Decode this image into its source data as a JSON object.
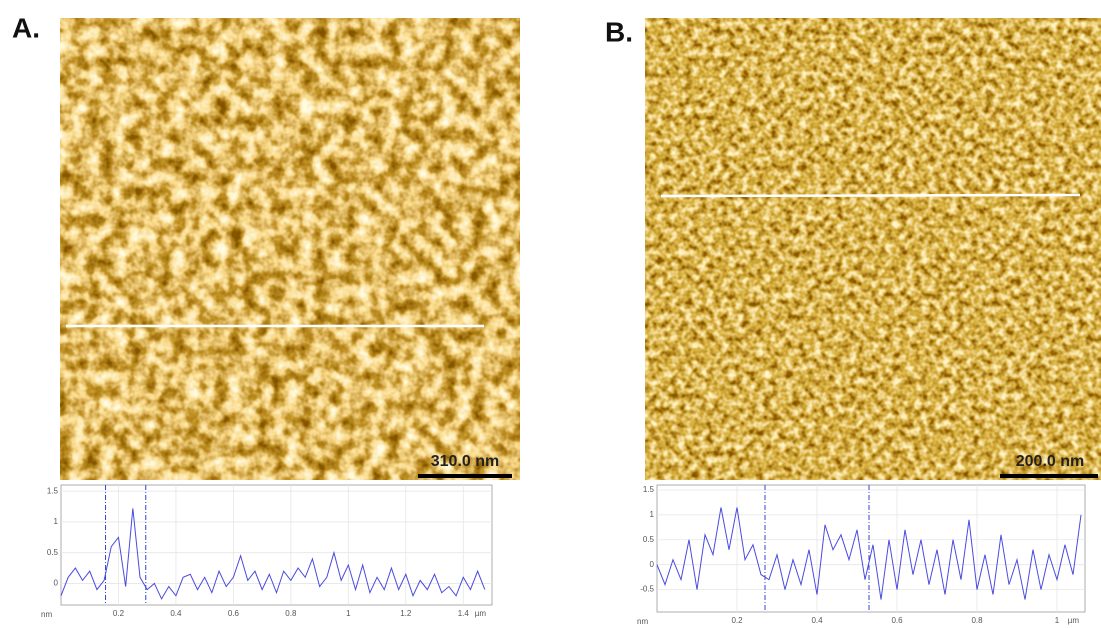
{
  "chart_data": [
    {
      "type": "line",
      "panel_label": "A.",
      "scale_bar": "310.0 nm",
      "x_unit": "µm",
      "y_unit": "nm",
      "x": [
        0,
        0.025,
        0.05,
        0.075,
        0.1,
        0.125,
        0.15,
        0.175,
        0.2,
        0.225,
        0.25,
        0.275,
        0.3,
        0.325,
        0.35,
        0.375,
        0.4,
        0.425,
        0.45,
        0.475,
        0.5,
        0.525,
        0.55,
        0.575,
        0.6,
        0.625,
        0.65,
        0.675,
        0.7,
        0.725,
        0.75,
        0.775,
        0.8,
        0.825,
        0.85,
        0.875,
        0.9,
        0.925,
        0.95,
        0.975,
        1.0,
        1.025,
        1.05,
        1.075,
        1.1,
        1.125,
        1.15,
        1.175,
        1.2,
        1.225,
        1.25,
        1.275,
        1.3,
        1.325,
        1.35,
        1.375,
        1.4,
        1.425,
        1.45,
        1.475
      ],
      "series": [
        {
          "color": "#4a4ae0",
          "values": [
            -0.2,
            0.1,
            0.25,
            0.05,
            0.2,
            -0.1,
            0.05,
            0.6,
            0.75,
            -0.05,
            1.22,
            0.1,
            -0.1,
            0,
            -0.25,
            -0.05,
            -0.2,
            0.1,
            0.15,
            -0.1,
            0.1,
            -0.15,
            0.2,
            -0.05,
            0.1,
            0.45,
            0.05,
            0.2,
            -0.1,
            0.15,
            -0.15,
            0.2,
            0.05,
            0.25,
            0.1,
            0.4,
            -0.05,
            0.1,
            0.5,
            0.05,
            0.3,
            -0.1,
            0.3,
            -0.15,
            0.1,
            -0.1,
            0.25,
            -0.1,
            0.15,
            -0.2,
            0.05,
            -0.1,
            0.15,
            -0.15,
            -0.05,
            -0.2,
            0.1,
            -0.1,
            0.2,
            -0.1
          ]
        }
      ],
      "cursors": [
        0.155,
        0.295
      ],
      "xlim": [
        0,
        1.5
      ],
      "ylim": [
        -0.35,
        1.6
      ],
      "xticks": [
        0.2,
        0.4,
        0.6,
        0.8,
        1,
        1.2,
        1.4
      ],
      "yticks": [
        1.5,
        1,
        0.5,
        0
      ],
      "grid": true
    },
    {
      "type": "line",
      "panel_label": "B.",
      "scale_bar": "200.0 nm",
      "x_unit": "µm",
      "y_unit": "nm",
      "x": [
        0,
        0.02,
        0.04,
        0.06,
        0.08,
        0.1,
        0.12,
        0.14,
        0.16,
        0.18,
        0.2,
        0.22,
        0.24,
        0.26,
        0.28,
        0.3,
        0.32,
        0.34,
        0.36,
        0.38,
        0.4,
        0.42,
        0.44,
        0.46,
        0.48,
        0.5,
        0.52,
        0.54,
        0.56,
        0.58,
        0.6,
        0.62,
        0.64,
        0.66,
        0.68,
        0.7,
        0.72,
        0.74,
        0.76,
        0.78,
        0.8,
        0.82,
        0.84,
        0.86,
        0.88,
        0.9,
        0.92,
        0.94,
        0.96,
        0.98,
        1.0,
        1.02,
        1.04,
        1.06
      ],
      "series": [
        {
          "color": "#4a4ae0",
          "values": [
            0,
            -0.4,
            0.1,
            -0.3,
            0.5,
            -0.5,
            0.6,
            0.2,
            1.15,
            0.3,
            1.15,
            0.1,
            0.4,
            -0.2,
            -0.3,
            0.2,
            -0.5,
            0.1,
            -0.4,
            0.3,
            -0.6,
            0.8,
            0.3,
            0.6,
            0.1,
            0.7,
            -0.3,
            0.4,
            -0.7,
            0.5,
            -0.5,
            0.7,
            -0.2,
            0.5,
            -0.4,
            0.3,
            -0.6,
            0.5,
            -0.3,
            0.9,
            -0.5,
            0.2,
            -0.6,
            0.6,
            -0.4,
            0.1,
            -0.7,
            0.3,
            -0.5,
            0.2,
            -0.3,
            0.4,
            -0.2,
            1.0
          ]
        }
      ],
      "cursors": [
        0.27,
        0.53
      ],
      "xlim": [
        0,
        1.07
      ],
      "ylim": [
        -0.95,
        1.6
      ],
      "xticks": [
        0.2,
        0.4,
        0.6,
        0.8,
        1
      ],
      "yticks": [
        1.5,
        1,
        0.5,
        0,
        -0.5
      ],
      "grid": true
    }
  ]
}
